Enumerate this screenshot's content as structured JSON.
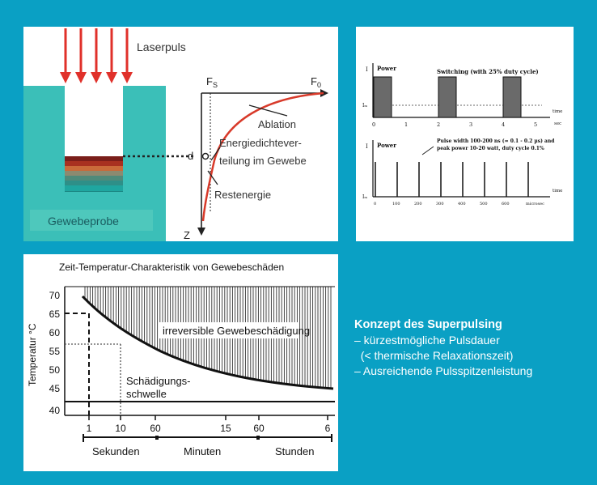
{
  "laser_panel": {
    "laserpuls": "Laserpuls",
    "fs": "F",
    "fs_sub": "S",
    "f0": "F",
    "f0_sub": "0",
    "d": "d",
    "z": "Z",
    "ablation": "Ablation",
    "energie_1": "Energiedichtever-",
    "energie_2": "teilung im Gewebe",
    "restenergie": "Restenergie",
    "gewebeprobe": "Gewebeprobe"
  },
  "power_panel": {
    "top": {
      "y_axis": "I",
      "power": "Power",
      "title": "Switching (with 25% duty cycle)",
      "im": "Iₘ",
      "time": "time",
      "unit": "sec",
      "ticks": [
        "0",
        "1",
        "2",
        "3",
        "4",
        "5"
      ]
    },
    "bottom": {
      "y_axis": "I",
      "power": "Power",
      "note_1": "Pulse width 100-200 ns (= 0.1 - 0.2 µs) and",
      "note_2": "peak power 10-20 watt, duty cycle 0.1%",
      "im": "Iₘ",
      "time": "time",
      "unit": "microsec",
      "ticks": [
        "0",
        "100",
        "200",
        "300",
        "400",
        "500",
        "600"
      ]
    }
  },
  "damage_panel": {
    "title": "Zeit-Temperatur-Charakteristik von Gewebeschäden",
    "ylabel": "Temperatur °C",
    "irreversible": "irreversible Gewebeschädigung",
    "schwelle_1": "Schädigungs-",
    "schwelle_2": "schwelle",
    "y_ticks": [
      "70",
      "65",
      "60",
      "55",
      "50",
      "45",
      "40"
    ],
    "x_ticks": [
      "1",
      "10",
      "60",
      "15",
      "60",
      "6"
    ],
    "units": [
      "Sekunden",
      "Minuten",
      "Stunden"
    ]
  },
  "concept": {
    "title": "Konzept des Superpulsing",
    "items": [
      "– kürzestmögliche Pulsdauer",
      "  (< thermische Relaxationszeit)",
      "– Ausreichende Pulsspitzenleistung"
    ]
  },
  "colors": {
    "background": "#0aa0c4",
    "tissue": "#3bbfb8",
    "curve": "#d83a2a",
    "arrow": "#e0302a"
  }
}
